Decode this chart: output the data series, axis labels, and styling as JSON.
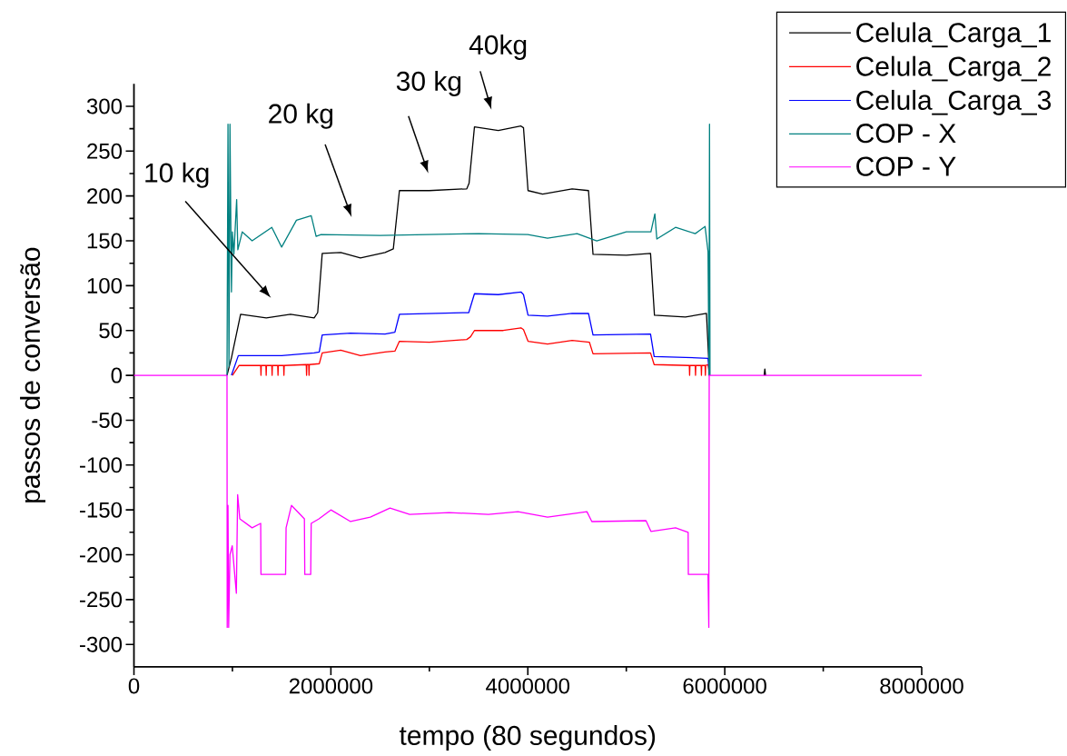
{
  "chart_data": {
    "type": "line",
    "xlabel": "tempo (80 segundos)",
    "ylabel": "passos de conversão",
    "xlim": [
      0,
      8000000
    ],
    "ylim": [
      -325,
      325
    ],
    "xticks": [
      0,
      2000000,
      4000000,
      6000000,
      8000000
    ],
    "yticks": [
      -300,
      -250,
      -200,
      -150,
      -100,
      -50,
      0,
      50,
      100,
      150,
      200,
      250,
      300
    ],
    "legend": "top right",
    "annotations": [
      "10 kg",
      "20 kg",
      "30 kg",
      "40kg"
    ],
    "series": [
      {
        "name": "Celula_Carga_1",
        "color": "#000000",
        "x": [
          945000,
          991000,
          1083000,
          1344000,
          1590000,
          1830000,
          1866000,
          1912000,
          2100000,
          2300000,
          2550000,
          2634000,
          2696000,
          3000000,
          3380000,
          3403000,
          3458000,
          3700000,
          3930000,
          3956000,
          4002000,
          4150000,
          4450000,
          4616000,
          4662000,
          5000000,
          5246000,
          5286000,
          5600000,
          5814000,
          5845000,
          6100000,
          6400000,
          6407000,
          6414000
        ],
        "values": [
          0,
          20,
          68,
          64,
          68,
          64,
          70,
          136,
          137,
          131,
          137,
          141,
          206,
          206,
          208,
          214,
          277,
          273,
          278,
          276,
          206,
          202,
          208,
          206,
          135,
          134,
          136,
          67,
          65,
          69,
          0,
          null,
          0,
          7,
          0
        ]
      },
      {
        "name": "Celula_Carga_2",
        "color": "#ff0000",
        "x": [
          1000000,
          1068000,
          1287000,
          1290000,
          1293000,
          1340000,
          1343000,
          1346000,
          1400000,
          1403000,
          1406000,
          1460000,
          1463000,
          1466000,
          1520000,
          1523000,
          1526000,
          1750000,
          1753000,
          1756000,
          1775000,
          1778000,
          1781000,
          1882000,
          1912000,
          2100000,
          2300000,
          2550000,
          2650000,
          2696000,
          3000000,
          3380000,
          3418000,
          3458000,
          3750000,
          3930000,
          3956000,
          4002000,
          4200000,
          4450000,
          4625000,
          4662000,
          5246000,
          5283000,
          5640000,
          5643000,
          5646000,
          5700000,
          5703000,
          5706000,
          5760000,
          5763000,
          5766000,
          5800000,
          5803000,
          5806000,
          5830000,
          5845000
        ],
        "values": [
          0,
          11,
          11,
          0,
          11,
          11,
          0,
          11,
          11,
          0,
          11,
          11,
          0,
          11,
          11,
          0,
          11,
          12,
          0,
          12,
          12,
          0,
          12,
          13,
          25,
          28,
          22,
          26,
          27,
          38,
          37,
          40,
          43,
          50,
          50,
          53,
          51,
          38,
          35,
          39,
          37,
          24,
          25,
          12,
          11,
          0,
          11,
          11,
          0,
          11,
          11,
          0,
          11,
          11,
          0,
          11,
          12,
          0
        ]
      },
      {
        "name": "Celula_Carga_3",
        "color": "#0000ff",
        "x": [
          990000,
          1060000,
          1500000,
          1830000,
          1882000,
          1912000,
          2200000,
          2550000,
          2650000,
          2696000,
          3400000,
          3458000,
          3700000,
          3930000,
          3956000,
          4002000,
          4200000,
          4450000,
          4616000,
          4662000,
          5246000,
          5283000,
          5600000,
          5830000,
          5845000
        ],
        "values": [
          0,
          22,
          22,
          25,
          26,
          45,
          47,
          46,
          48,
          68,
          70,
          91,
          90,
          93,
          90,
          67,
          66,
          69,
          69,
          45,
          46,
          21,
          20,
          19,
          0
        ]
      },
      {
        "name": "COP - X",
        "color": "#008080",
        "x": [
          945000,
          955000,
          965000,
          975000,
          990000,
          1000000,
          1015000,
          1043000,
          1055000,
          1100000,
          1200000,
          1400000,
          1500000,
          1650000,
          1800000,
          1850000,
          1900000,
          2500000,
          3000000,
          3500000,
          4000000,
          4200000,
          4500000,
          4700000,
          5000000,
          5250000,
          5290000,
          5310000,
          5500000,
          5700000,
          5800000,
          5830000,
          5840000,
          5845000,
          5850000
        ],
        "values": [
          0,
          280,
          10,
          280,
          93,
          160,
          135,
          196,
          140,
          160,
          150,
          165,
          143,
          173,
          178,
          155,
          157,
          156,
          157,
          158,
          157,
          153,
          158,
          150,
          160,
          160,
          180,
          152,
          165,
          158,
          166,
          138,
          0,
          280,
          0
        ]
      },
      {
        "name": "COP - Y",
        "color": "#ff00ff",
        "x": [
          0,
          945000,
          947000,
          955000,
          962000,
          975000,
          998000,
          1040000,
          1053000,
          1075000,
          1200000,
          1287000,
          1290000,
          1540000,
          1545000,
          1600000,
          1731000,
          1735000,
          1795000,
          1800000,
          1879000,
          2000000,
          2200000,
          2400000,
          2600000,
          2800000,
          3200000,
          3600000,
          3900000,
          4200000,
          4600000,
          4650000,
          5200000,
          5250000,
          5500000,
          5628000,
          5630000,
          5830000,
          5838000,
          5842000,
          8000000
        ],
        "values": [
          0,
          0,
          -281,
          -145,
          -281,
          -200,
          -190,
          -243,
          -133,
          -160,
          -170,
          -165,
          -222,
          -222,
          -170,
          -145,
          -160,
          -222,
          -222,
          -165,
          -160,
          -150,
          -163,
          -158,
          -148,
          -155,
          -153,
          -155,
          -152,
          -158,
          -152,
          -163,
          -162,
          -174,
          -170,
          -175,
          -222,
          -222,
          -281,
          0,
          0
        ]
      }
    ]
  }
}
